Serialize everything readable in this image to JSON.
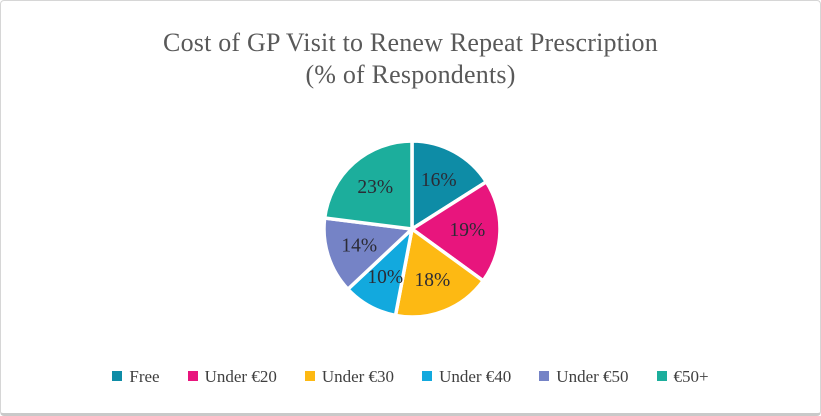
{
  "chart_data": {
    "type": "pie",
    "title": "Cost of GP Visit to Renew Repeat Prescription (% of Respondents)",
    "title_line1": "Cost of GP Visit to Renew Repeat Prescription",
    "title_line2": "(% of Respondents)",
    "categories": [
      "Free",
      "Under €20",
      "Under €30",
      "Under €40",
      "Under €50",
      "€50+"
    ],
    "values": [
      16,
      19,
      18,
      10,
      14,
      23
    ],
    "data_labels": [
      "16%",
      "19%",
      "18%",
      "10%",
      "14%",
      "23%"
    ],
    "colors": [
      "#0e8ca6",
      "#e8157d",
      "#fdb913",
      "#12a9de",
      "#7583c6",
      "#1cae9c"
    ],
    "start_angle_deg": 0,
    "direction": "clockwise",
    "legend_position": "bottom",
    "slice_gap": "white borders between slices"
  },
  "theme": {
    "background": "#ffffff",
    "border_color": "#d6d6d6",
    "title_color": "#595959",
    "data_label_color": "#2b2b35",
    "legend_text_color": "#3f3f3f",
    "slice_border_color": "#ffffff"
  }
}
